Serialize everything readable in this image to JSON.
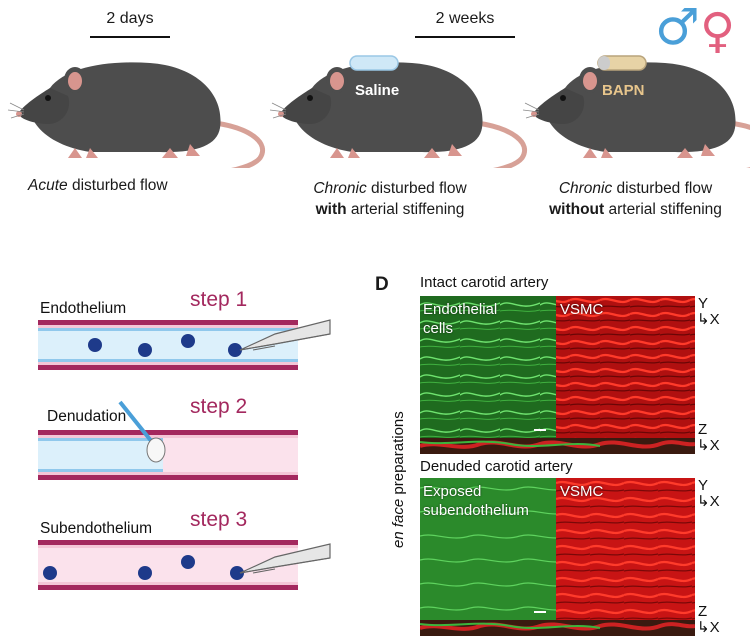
{
  "top": {
    "durations": {
      "acute": "2 days",
      "chronic": "2 weeks"
    },
    "implants": {
      "saline": "Saline",
      "bapn": "BAPN"
    },
    "captions": {
      "acute": {
        "italic": "Acute",
        "rest": " disturbed flow"
      },
      "chronic_with": {
        "italic": "Chronic",
        "rest": " disturbed flow",
        "bold": "with",
        "line2": " arterial stiffening"
      },
      "chronic_without": {
        "italic": "Chronic",
        "rest": " disturbed flow",
        "bold": "without",
        "line2": " arterial stiffening"
      }
    },
    "sex_symbols": {
      "male": "♂",
      "female": "♀",
      "male_color": "#4a9fd8",
      "female_color": "#e2607f"
    }
  },
  "steps": {
    "step1": {
      "label": "step 1",
      "stage": "Endothelium"
    },
    "step2": {
      "label": "step 2",
      "stage": "Denudation"
    },
    "step3": {
      "label": "step 3",
      "stage": "Subendothelium"
    }
  },
  "panel_d": {
    "letter": "D",
    "side_label": {
      "italic": "en face",
      "rest": " preparations"
    },
    "intact": {
      "title": "Intact carotid artery",
      "left_label_1": "Endothelial",
      "left_label_2": "cells",
      "right_label": "VSMC"
    },
    "denuded": {
      "title": "Denuded carotid artery",
      "left_label_1": "Exposed",
      "left_label_2": "subendothelium",
      "right_label": "VSMC"
    },
    "axes": {
      "y": "Y",
      "x": "X",
      "z": "Z"
    }
  }
}
